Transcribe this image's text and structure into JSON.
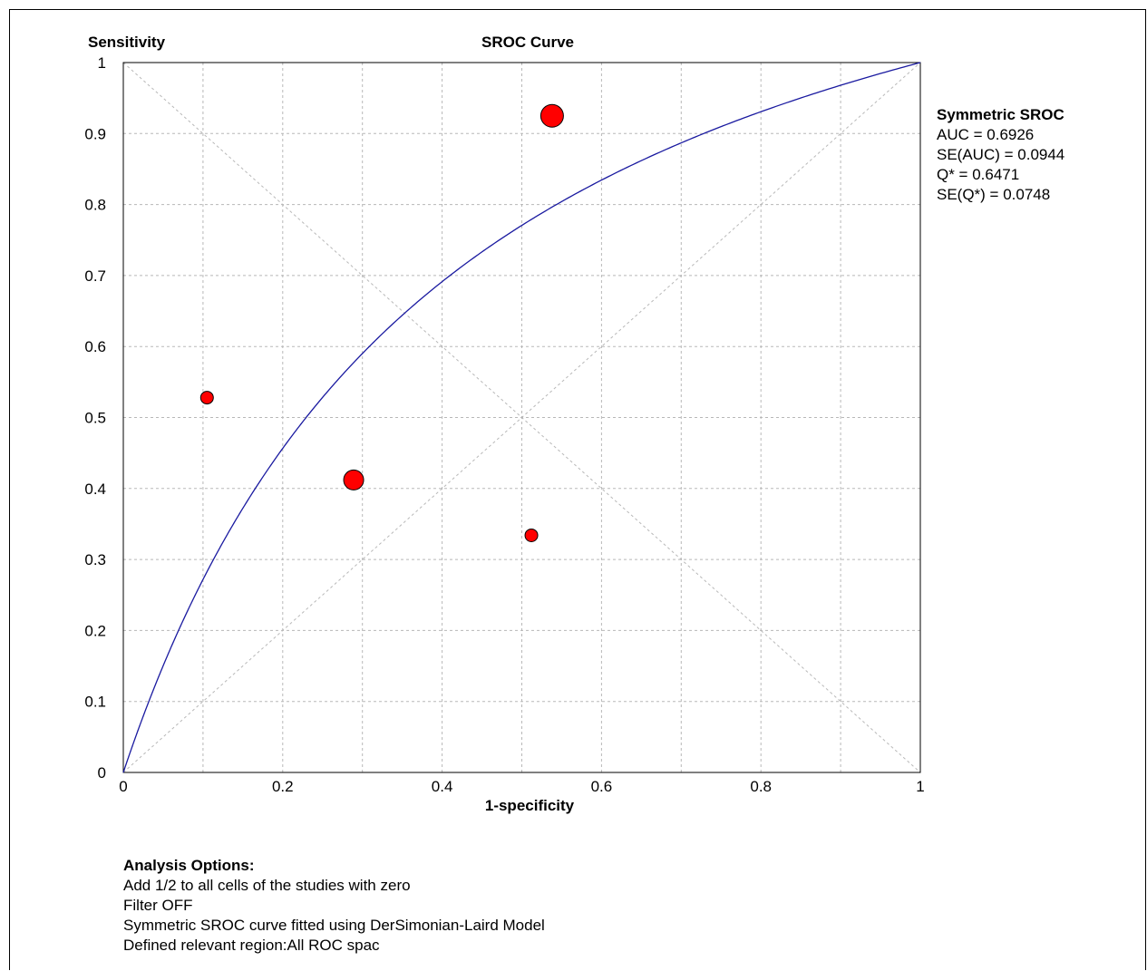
{
  "chart_data": {
    "type": "scatter",
    "title": "SROC Curve",
    "xlabel": "1-specificity",
    "ylabel": "Sensitivity",
    "xlim": [
      0,
      1
    ],
    "ylim": [
      0,
      1
    ],
    "x_ticks": [
      "0",
      "0.2",
      "0.4",
      "0.6",
      "0.8",
      "1"
    ],
    "y_ticks": [
      "0",
      "0.1",
      "0.2",
      "0.3",
      "0.4",
      "0.5",
      "0.6",
      "0.7",
      "0.8",
      "0.9",
      "1"
    ],
    "grid": true,
    "points": [
      {
        "x": 0.105,
        "y": 0.528,
        "weight": "small"
      },
      {
        "x": 0.289,
        "y": 0.412,
        "weight": "medium"
      },
      {
        "x": 0.512,
        "y": 0.334,
        "weight": "small"
      },
      {
        "x": 0.538,
        "y": 0.925,
        "weight": "large"
      }
    ],
    "curve": {
      "model": "symmetric",
      "auc": 0.6926
    },
    "diagonals": true,
    "colors": {
      "points": "#ff0000",
      "curve": "#1a1aa0",
      "grid": "#b8b8b8"
    }
  },
  "stats": {
    "heading": "Symmetric SROC",
    "lines": [
      "AUC = 0.6926",
      "SE(AUC) = 0.0944",
      "Q* = 0.6471",
      "SE(Q*) = 0.0748"
    ]
  },
  "options": {
    "heading": "Analysis Options:",
    "lines": [
      "Add 1/2 to all cells of the studies with zero",
      "Filter OFF",
      "Symmetric SROC curve fitted using DerSimonian-Laird Model",
      "Defined relevant region:All ROC spac"
    ]
  }
}
